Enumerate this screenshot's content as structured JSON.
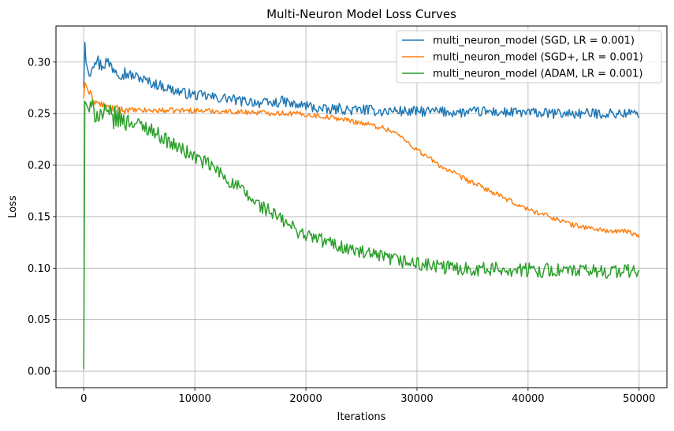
{
  "chart_data": {
    "type": "line",
    "title": "Multi-Neuron Model Loss Curves",
    "xlabel": "Iterations",
    "ylabel": "Loss",
    "xlim": [
      -2500,
      52500
    ],
    "ylim": [
      -0.016,
      0.335
    ],
    "xticks": [
      0,
      10000,
      20000,
      30000,
      40000,
      50000
    ],
    "xtick_labels": [
      "0",
      "10000",
      "20000",
      "30000",
      "40000",
      "50000"
    ],
    "yticks": [
      0.0,
      0.05,
      0.1,
      0.15,
      0.2,
      0.25,
      0.3
    ],
    "ytick_labels": [
      "0.00",
      "0.05",
      "0.10",
      "0.15",
      "0.20",
      "0.25",
      "0.30"
    ],
    "grid": true,
    "legend_position": "top-right",
    "series": [
      {
        "name": "multi_neuron_model (SGD, LR = 0.001)",
        "color": "#1f77b4",
        "x": [
          0,
          100,
          200,
          500,
          1000,
          1500,
          2000,
          3000,
          4000,
          5000,
          6000,
          7000,
          8000,
          9000,
          10000,
          11000,
          12000,
          13000,
          14000,
          15000,
          16000,
          17000,
          18000,
          19000,
          20000,
          21000,
          22000,
          23000,
          24000,
          25000,
          26000,
          27000,
          28000,
          29000,
          30000,
          32000,
          34000,
          36000,
          38000,
          40000,
          42000,
          44000,
          46000,
          48000,
          49000,
          50000
        ],
        "y": [
          0.275,
          0.319,
          0.3,
          0.29,
          0.305,
          0.297,
          0.3,
          0.293,
          0.288,
          0.285,
          0.28,
          0.277,
          0.273,
          0.27,
          0.268,
          0.267,
          0.265,
          0.265,
          0.262,
          0.262,
          0.26,
          0.26,
          0.262,
          0.258,
          0.258,
          0.255,
          0.253,
          0.255,
          0.253,
          0.254,
          0.253,
          0.252,
          0.253,
          0.252,
          0.252,
          0.252,
          0.251,
          0.252,
          0.251,
          0.251,
          0.25,
          0.25,
          0.25,
          0.25,
          0.25,
          0.25
        ],
        "noise": 0.005
      },
      {
        "name": "multi_neuron_model (SGD+, LR = 0.001)",
        "color": "#ff7f0e",
        "x": [
          0,
          100,
          200,
          500,
          1000,
          2000,
          3000,
          5000,
          8000,
          10000,
          13000,
          16000,
          19000,
          21000,
          23000,
          25000,
          27000,
          28000,
          30000,
          32000,
          34000,
          36000,
          38000,
          40000,
          42000,
          44000,
          46000,
          48000,
          49000,
          50000
        ],
        "y": [
          0.265,
          0.28,
          0.278,
          0.27,
          0.262,
          0.256,
          0.254,
          0.253,
          0.253,
          0.253,
          0.252,
          0.251,
          0.25,
          0.248,
          0.245,
          0.241,
          0.236,
          0.232,
          0.215,
          0.2,
          0.188,
          0.178,
          0.167,
          0.157,
          0.15,
          0.142,
          0.138,
          0.135,
          0.136,
          0.13
        ],
        "noise": 0.0025
      },
      {
        "name": "multi_neuron_model (ADAM, LR = 0.001)",
        "color": "#2ca02c",
        "x": [
          0,
          100,
          200,
          400,
          1000,
          2000,
          4000,
          6000,
          8000,
          10000,
          11000,
          12000,
          13000,
          14000,
          15000,
          16000,
          17000,
          18000,
          19000,
          20000,
          22000,
          24000,
          26000,
          28000,
          30000,
          32000,
          34000,
          36000,
          38000,
          40000,
          42000,
          44000,
          46000,
          48000,
          50000
        ],
        "y": [
          0.002,
          0.262,
          0.26,
          0.255,
          0.252,
          0.248,
          0.243,
          0.235,
          0.22,
          0.208,
          0.202,
          0.195,
          0.185,
          0.178,
          0.167,
          0.16,
          0.153,
          0.145,
          0.138,
          0.132,
          0.125,
          0.118,
          0.112,
          0.108,
          0.104,
          0.101,
          0.1,
          0.099,
          0.099,
          0.098,
          0.098,
          0.097,
          0.097,
          0.097,
          0.097
        ],
        "noise": 0.007
      }
    ]
  }
}
